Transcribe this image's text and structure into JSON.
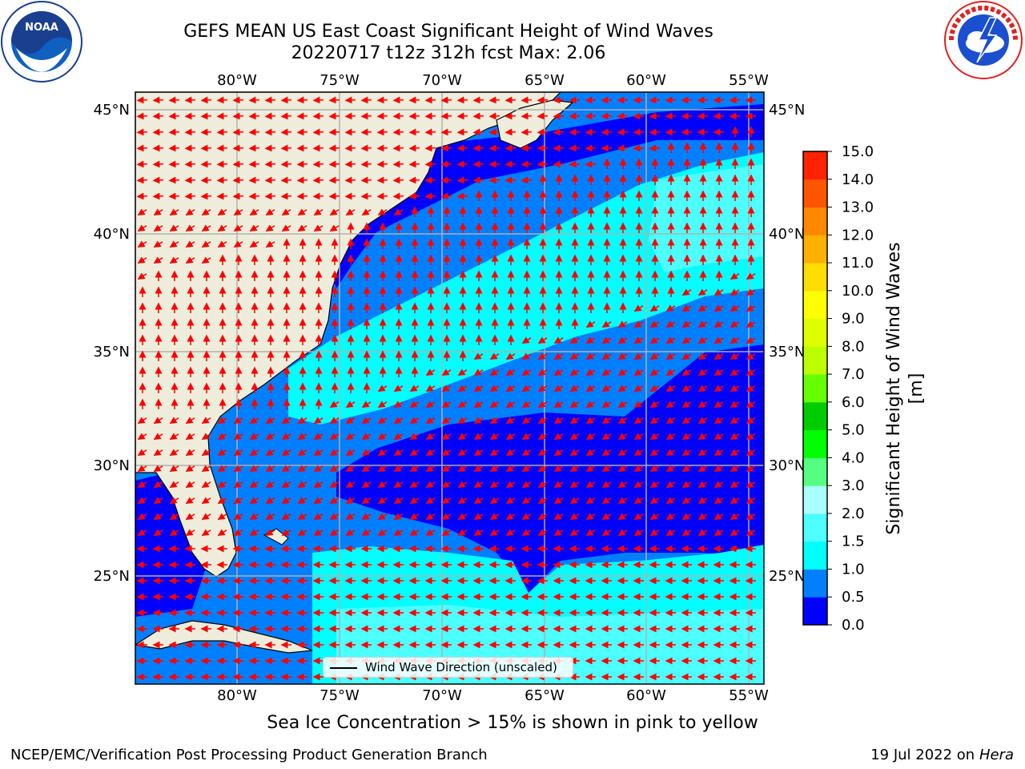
{
  "header": {
    "title_line1": "GEFS MEAN US East Coast Significant Height of Wind Waves",
    "title_line2": "20220717 t12z 312h fcst   Max: 2.06"
  },
  "logos": {
    "noaa": {
      "text": "NOAA",
      "icon": "noaa-logo-icon"
    },
    "nws": {
      "text": "NATIONAL WEATHER SERVICE",
      "icon": "nws-logo-icon"
    }
  },
  "map": {
    "lon_labels": [
      "80°W",
      "75°W",
      "70°W",
      "65°W",
      "60°W",
      "55°W"
    ],
    "lat_labels": [
      "45°N",
      "40°N",
      "35°N",
      "30°N",
      "25°N"
    ],
    "legend_label": "Wind Wave Direction (unscaled)",
    "colors": {
      "land": "#eeeddc",
      "band_0_0": "#0000ff",
      "band_0_5": "#007fff",
      "band_1_0": "#00ffff",
      "band_1_5": "#4dffff",
      "band_2_0": "#aaffff",
      "arrows": "#ff0000",
      "grid": "#b0b0b0"
    }
  },
  "colorbar": {
    "label": "Significant Height of Wind Waves [m]",
    "ticks": [
      "0.0",
      "0.5",
      "1.0",
      "1.5",
      "2.0",
      "3.0",
      "4.0",
      "5.0",
      "6.0",
      "7.0",
      "8.0",
      "9.0",
      "10.0",
      "11.0",
      "12.0",
      "13.0",
      "14.0",
      "15.0"
    ],
    "colors": [
      "#0000ff",
      "#007fff",
      "#00ffff",
      "#4dffff",
      "#aaffff",
      "#55ff80",
      "#00ff00",
      "#00cc00",
      "#66ff00",
      "#bbff00",
      "#ddff00",
      "#ffff00",
      "#ffdd00",
      "#ffb000",
      "#ff8800",
      "#ff5500",
      "#ff2200"
    ]
  },
  "notes": {
    "sea_ice": "Sea Ice Concentration > 15% is shown in pink to yellow",
    "producer": "NCEP/EMC/Verification Post Processing Product Generation Branch",
    "date": "19 Jul 2022 on",
    "host": "Hera"
  }
}
